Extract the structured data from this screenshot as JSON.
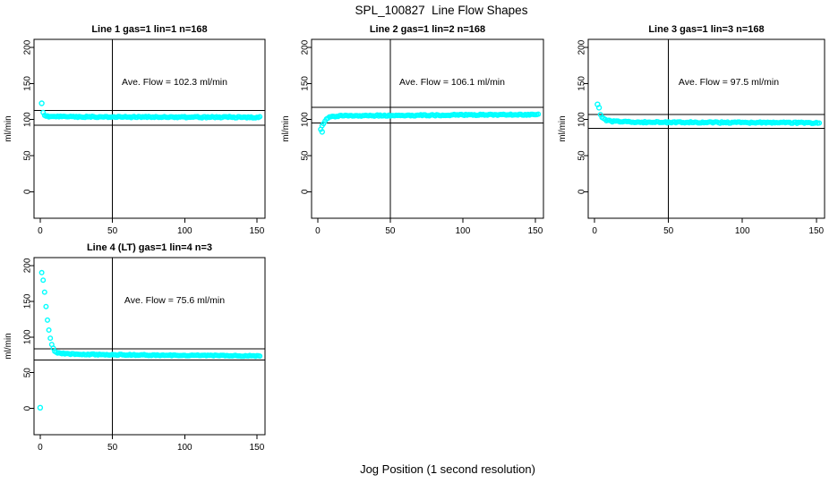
{
  "chart_data": {
    "type": "scatter",
    "title": "SPL_100827  Line Flow Shapes",
    "xlabel": "Jog Position (1 second resolution)",
    "ylabel": "ml/min",
    "marker": "open-circle",
    "marker_color": "#00FFFF",
    "axis_color": "#000000",
    "background_color": "#FFFFFF",
    "grid": false,
    "xlim": [
      -4.3,
      155.6
    ],
    "ylim": [
      -36.8,
      211.2
    ],
    "xticks": [
      0,
      50,
      100,
      150
    ],
    "yticks": [
      0,
      50,
      100,
      150,
      200
    ],
    "layout": "3 panels top row, 1 panel bottom-left",
    "plots": [
      {
        "title": "Line 1 gas=1 lin=1 n=168",
        "annotation": "Ave. Flow =  102.3  ml/min",
        "ave_flow": 102.3,
        "n": 168,
        "vline_x": 50,
        "hlines": [
          112.5,
          92.1
        ],
        "x_start": 2,
        "x_end": 152,
        "trend": [
          [
            2,
            110
          ],
          [
            3,
            105.5
          ],
          [
            4,
            104.3
          ],
          [
            6,
            104.0
          ],
          [
            20,
            103.8
          ],
          [
            50,
            103.6
          ],
          [
            100,
            103.4
          ],
          [
            152,
            103.2
          ]
        ],
        "noise": 0.9,
        "outliers": [
          [
            1,
            122.5
          ]
        ]
      },
      {
        "title": "Line 2 gas=1 lin=2 n=168",
        "annotation": "Ave. Flow =  106.1  ml/min",
        "ave_flow": 106.1,
        "n": 168,
        "vline_x": 50,
        "hlines": [
          116.7,
          95.5
        ],
        "x_start": 2,
        "x_end": 152,
        "trend": [
          [
            2,
            87
          ],
          [
            3,
            91
          ],
          [
            4,
            94.5
          ],
          [
            5,
            97.5
          ],
          [
            6,
            100
          ],
          [
            7,
            101.8
          ],
          [
            8,
            103
          ],
          [
            10,
            104.2
          ],
          [
            15,
            105
          ],
          [
            30,
            105.4
          ],
          [
            60,
            105.8
          ],
          [
            100,
            106.3
          ],
          [
            130,
            106.8
          ],
          [
            152,
            107
          ]
        ],
        "noise": 0.9,
        "outliers": [
          [
            3,
            83
          ]
        ]
      },
      {
        "title": "Line 3 gas=1 lin=3 n=168",
        "annotation": "Ave. Flow =  97.5  ml/min",
        "ave_flow": 97.5,
        "n": 168,
        "vline_x": 50,
        "hlines": [
          107.3,
          87.8
        ],
        "x_start": 4,
        "x_end": 152,
        "trend": [
          [
            4,
            107
          ],
          [
            5,
            103.5
          ],
          [
            6,
            101.5
          ],
          [
            7,
            100
          ],
          [
            9,
            98.5
          ],
          [
            12,
            97.5
          ],
          [
            20,
            96.8
          ],
          [
            40,
            96.3
          ],
          [
            80,
            96
          ],
          [
            120,
            95.7
          ],
          [
            152,
            95.5
          ]
        ],
        "noise": 0.9,
        "outliers": [
          [
            2,
            121
          ],
          [
            3,
            116.5
          ]
        ]
      },
      {
        "title": "Line 4 (LT) gas=1 lin=4 n=3",
        "annotation": "Ave. Flow =  75.6  ml/min",
        "ave_flow": 75.6,
        "n": 3,
        "vline_x": 50,
        "hlines": [
          83.2,
          68.0
        ],
        "x_start": 1,
        "x_end": 152,
        "trend": [
          [
            1,
            190
          ],
          [
            2,
            180
          ],
          [
            3,
            163
          ],
          [
            4,
            143
          ],
          [
            5,
            124
          ],
          [
            6,
            110
          ],
          [
            7,
            99
          ],
          [
            8,
            90
          ],
          [
            9,
            84
          ],
          [
            10,
            80.5
          ],
          [
            12,
            78
          ],
          [
            15,
            77
          ],
          [
            20,
            76.3
          ],
          [
            30,
            75.8
          ],
          [
            60,
            75
          ],
          [
            100,
            74.3
          ],
          [
            130,
            73.8
          ],
          [
            152,
            73.5
          ]
        ],
        "noise": 0.7,
        "outliers": [
          [
            0,
            1
          ]
        ]
      }
    ]
  }
}
